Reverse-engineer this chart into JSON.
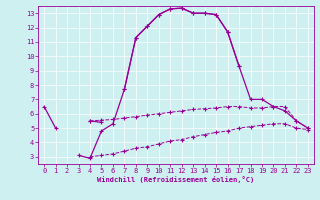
{
  "xlabel": "Windchill (Refroidissement éolien,°C)",
  "background_color": "#cff0f0",
  "grid_color": "#ffffff",
  "line_color": "#990099",
  "x_hours": [
    0,
    1,
    2,
    3,
    4,
    5,
    6,
    7,
    8,
    9,
    10,
    11,
    12,
    13,
    14,
    15,
    16,
    17,
    18,
    19,
    20,
    21,
    22,
    23
  ],
  "line1_y": [
    6.5,
    5.0,
    null,
    null,
    5.5,
    5.4,
    null,
    7.7,
    11.3,
    12.1,
    12.9,
    13.3,
    13.35,
    13.0,
    13.0,
    12.9,
    11.7,
    9.3,
    null,
    null,
    null,
    null,
    null,
    null
  ],
  "line2_y": [
    null,
    null,
    null,
    3.1,
    2.9,
    4.8,
    5.3,
    7.7,
    11.3,
    12.1,
    12.9,
    13.3,
    13.35,
    13.0,
    13.0,
    12.9,
    11.7,
    9.3,
    7.0,
    7.0,
    6.5,
    6.2,
    5.5,
    5.0
  ],
  "line3_y": [
    null,
    null,
    null,
    null,
    5.5,
    5.55,
    5.6,
    5.7,
    5.8,
    5.9,
    6.0,
    6.1,
    6.2,
    6.3,
    6.35,
    6.4,
    6.5,
    6.5,
    6.4,
    6.4,
    6.5,
    6.5,
    5.5,
    5.0
  ],
  "line4_y": [
    null,
    null,
    null,
    null,
    3.0,
    3.1,
    3.2,
    3.4,
    3.6,
    3.7,
    3.9,
    4.1,
    4.2,
    4.4,
    4.55,
    4.7,
    4.8,
    5.0,
    5.1,
    5.2,
    5.3,
    5.3,
    5.0,
    4.9
  ],
  "ylim": [
    2.5,
    13.5
  ],
  "xlim": [
    -0.5,
    23.5
  ],
  "yticks": [
    3,
    4,
    5,
    6,
    7,
    8,
    9,
    10,
    11,
    12,
    13
  ],
  "xticks": [
    0,
    1,
    2,
    3,
    4,
    5,
    6,
    7,
    8,
    9,
    10,
    11,
    12,
    13,
    14,
    15,
    16,
    17,
    18,
    19,
    20,
    21,
    22,
    23
  ]
}
